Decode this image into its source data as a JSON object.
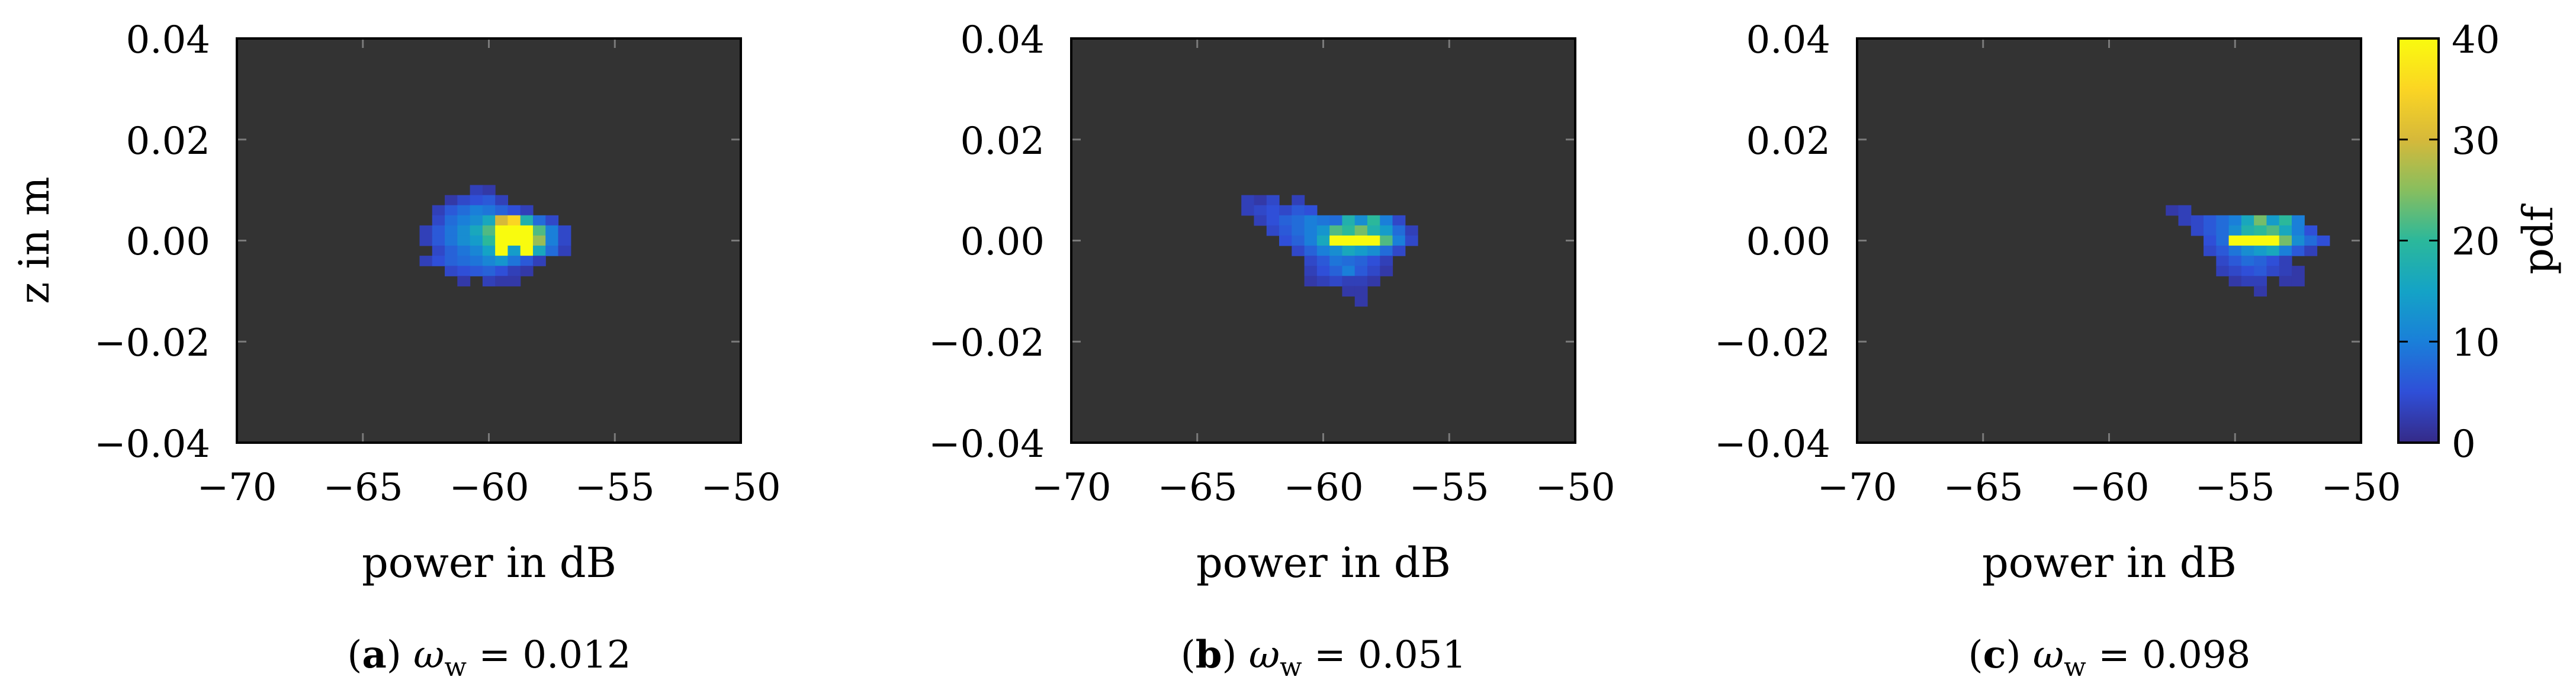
{
  "chart_data": [
    {
      "type": "heatmap",
      "caption_letter": "a",
      "caption_rest": "ω",
      "caption_sub": "w",
      "caption_value": " = 0.012",
      "xlabel": "power in dB",
      "ylabel": "z in m",
      "xlim": [
        -70,
        -50
      ],
      "ylim": [
        -0.04,
        0.04
      ],
      "xticks": [
        "−70",
        "−65",
        "−60",
        "−55",
        "−50"
      ],
      "yticks": [
        "−0.04",
        "−0.02",
        "0.00",
        "0.02",
        "0.04"
      ],
      "bin_width": 0.5,
      "bin_height": 0.002,
      "cells": [
        [
          -60.5,
          0.01,
          3
        ],
        [
          -60.0,
          0.01,
          2
        ],
        [
          -61.5,
          0.008,
          2
        ],
        [
          -61.0,
          0.008,
          4
        ],
        [
          -60.5,
          0.008,
          5
        ],
        [
          -60.0,
          0.008,
          6
        ],
        [
          -59.5,
          0.008,
          3
        ],
        [
          -62.0,
          0.006,
          3
        ],
        [
          -61.5,
          0.006,
          6
        ],
        [
          -61.0,
          0.006,
          8
        ],
        [
          -60.5,
          0.006,
          10
        ],
        [
          -60.0,
          0.006,
          9
        ],
        [
          -59.5,
          0.006,
          7
        ],
        [
          -59.0,
          0.006,
          5
        ],
        [
          -58.5,
          0.006,
          3
        ],
        [
          -62.0,
          0.004,
          4
        ],
        [
          -61.5,
          0.004,
          8
        ],
        [
          -61.0,
          0.004,
          10
        ],
        [
          -60.5,
          0.004,
          12
        ],
        [
          -60.0,
          0.004,
          16
        ],
        [
          -59.5,
          0.004,
          30
        ],
        [
          -59.0,
          0.004,
          35
        ],
        [
          -58.5,
          0.004,
          18
        ],
        [
          -58.0,
          0.004,
          8
        ],
        [
          -57.5,
          0.004,
          4
        ],
        [
          -62.5,
          0.002,
          3
        ],
        [
          -62.0,
          0.002,
          6
        ],
        [
          -61.5,
          0.002,
          9
        ],
        [
          -61.0,
          0.002,
          12
        ],
        [
          -60.5,
          0.002,
          16
        ],
        [
          -60.0,
          0.002,
          22
        ],
        [
          -59.5,
          0.002,
          40
        ],
        [
          -59.0,
          0.002,
          40
        ],
        [
          -58.5,
          0.002,
          40
        ],
        [
          -58.0,
          0.002,
          22
        ],
        [
          -57.5,
          0.002,
          10
        ],
        [
          -57.0,
          0.002,
          4
        ],
        [
          -62.5,
          0.0,
          3
        ],
        [
          -62.0,
          0.0,
          6
        ],
        [
          -61.5,
          0.0,
          9
        ],
        [
          -61.0,
          0.0,
          12
        ],
        [
          -60.5,
          0.0,
          14
        ],
        [
          -60.0,
          0.0,
          20
        ],
        [
          -59.5,
          0.0,
          40
        ],
        [
          -59.0,
          0.0,
          40
        ],
        [
          -58.5,
          0.0,
          40
        ],
        [
          -58.0,
          0.0,
          26
        ],
        [
          -57.5,
          0.0,
          10
        ],
        [
          -57.0,
          0.0,
          4
        ],
        [
          -62.0,
          -0.002,
          4
        ],
        [
          -61.5,
          -0.002,
          7
        ],
        [
          -61.0,
          -0.002,
          9
        ],
        [
          -60.5,
          -0.002,
          11
        ],
        [
          -60.0,
          -0.002,
          15
        ],
        [
          -59.5,
          -0.002,
          40
        ],
        [
          -59.0,
          -0.002,
          14
        ],
        [
          -58.5,
          -0.002,
          40
        ],
        [
          -58.0,
          -0.002,
          16
        ],
        [
          -57.5,
          -0.002,
          8
        ],
        [
          -57.0,
          -0.002,
          3
        ],
        [
          -62.5,
          -0.004,
          3
        ],
        [
          -62.0,
          -0.004,
          5
        ],
        [
          -61.5,
          -0.004,
          7
        ],
        [
          -61.0,
          -0.004,
          8
        ],
        [
          -60.5,
          -0.004,
          9
        ],
        [
          -60.0,
          -0.004,
          11
        ],
        [
          -59.5,
          -0.004,
          13
        ],
        [
          -59.0,
          -0.004,
          9
        ],
        [
          -58.5,
          -0.004,
          6
        ],
        [
          -58.0,
          -0.004,
          3
        ],
        [
          -61.5,
          -0.006,
          4
        ],
        [
          -61.0,
          -0.006,
          5
        ],
        [
          -60.5,
          -0.006,
          6
        ],
        [
          -60.0,
          -0.006,
          7
        ],
        [
          -59.5,
          -0.006,
          5
        ],
        [
          -59.0,
          -0.006,
          3
        ],
        [
          -58.5,
          -0.006,
          2
        ],
        [
          -61.0,
          -0.008,
          2
        ],
        [
          -60.0,
          -0.008,
          3
        ],
        [
          -59.5,
          -0.008,
          2
        ],
        [
          -59.0,
          -0.008,
          2
        ]
      ]
    },
    {
      "type": "heatmap",
      "caption_letter": "b",
      "caption_rest": "ω",
      "caption_sub": "w",
      "caption_value": " = 0.051",
      "xlabel": "power in dB",
      "ylabel": "",
      "xlim": [
        -70,
        -50
      ],
      "ylim": [
        -0.04,
        0.04
      ],
      "xticks": [
        "−70",
        "−65",
        "−60",
        "−55",
        "−50"
      ],
      "yticks": [
        "−0.04",
        "−0.02",
        "0.00",
        "0.02",
        "0.04"
      ],
      "bin_width": 0.5,
      "bin_height": 0.002,
      "cells": [
        [
          -63.0,
          0.008,
          3
        ],
        [
          -62.5,
          0.008,
          2
        ],
        [
          -62.0,
          0.008,
          4
        ],
        [
          -61.0,
          0.008,
          3
        ],
        [
          -63.0,
          0.006,
          3
        ],
        [
          -62.5,
          0.006,
          4
        ],
        [
          -62.0,
          0.006,
          5
        ],
        [
          -61.5,
          0.006,
          4
        ],
        [
          -61.0,
          0.006,
          6
        ],
        [
          -60.5,
          0.006,
          5
        ],
        [
          -62.5,
          0.004,
          3
        ],
        [
          -62.0,
          0.004,
          5
        ],
        [
          -61.5,
          0.004,
          7
        ],
        [
          -61.0,
          0.004,
          8
        ],
        [
          -60.5,
          0.004,
          10
        ],
        [
          -60.0,
          0.004,
          9
        ],
        [
          -59.5,
          0.004,
          8
        ],
        [
          -59.0,
          0.004,
          18
        ],
        [
          -58.5,
          0.004,
          12
        ],
        [
          -58.0,
          0.004,
          20
        ],
        [
          -57.5,
          0.004,
          10
        ],
        [
          -57.0,
          0.004,
          4
        ],
        [
          -62.0,
          0.002,
          4
        ],
        [
          -61.5,
          0.002,
          6
        ],
        [
          -61.0,
          0.002,
          8
        ],
        [
          -60.5,
          0.002,
          10
        ],
        [
          -60.0,
          0.002,
          13
        ],
        [
          -59.5,
          0.002,
          22
        ],
        [
          -59.0,
          0.002,
          20
        ],
        [
          -58.5,
          0.002,
          24
        ],
        [
          -58.0,
          0.002,
          18
        ],
        [
          -57.5,
          0.002,
          14
        ],
        [
          -57.0,
          0.002,
          8
        ],
        [
          -56.5,
          0.002,
          3
        ],
        [
          -61.5,
          0.0,
          5
        ],
        [
          -61.0,
          0.0,
          7
        ],
        [
          -60.5,
          0.0,
          10
        ],
        [
          -60.0,
          0.0,
          16
        ],
        [
          -59.5,
          0.0,
          40
        ],
        [
          -59.0,
          0.0,
          40
        ],
        [
          -58.5,
          0.0,
          40
        ],
        [
          -58.0,
          0.0,
          40
        ],
        [
          -57.5,
          0.0,
          22
        ],
        [
          -57.0,
          0.0,
          10
        ],
        [
          -56.5,
          0.0,
          4
        ],
        [
          -61.0,
          -0.002,
          4
        ],
        [
          -60.5,
          -0.002,
          7
        ],
        [
          -60.0,
          -0.002,
          10
        ],
        [
          -59.5,
          -0.002,
          12
        ],
        [
          -59.0,
          -0.002,
          16
        ],
        [
          -58.5,
          -0.002,
          14
        ],
        [
          -58.0,
          -0.002,
          12
        ],
        [
          -57.5,
          -0.002,
          8
        ],
        [
          -57.0,
          -0.002,
          4
        ],
        [
          -60.5,
          -0.004,
          4
        ],
        [
          -60.0,
          -0.004,
          6
        ],
        [
          -59.5,
          -0.004,
          9
        ],
        [
          -59.0,
          -0.004,
          8
        ],
        [
          -58.5,
          -0.004,
          7
        ],
        [
          -58.0,
          -0.004,
          5
        ],
        [
          -57.5,
          -0.004,
          3
        ],
        [
          -60.5,
          -0.006,
          3
        ],
        [
          -60.0,
          -0.006,
          5
        ],
        [
          -59.5,
          -0.006,
          7
        ],
        [
          -59.0,
          -0.006,
          10
        ],
        [
          -58.5,
          -0.006,
          6
        ],
        [
          -58.0,
          -0.006,
          4
        ],
        [
          -57.5,
          -0.006,
          2
        ],
        [
          -60.5,
          -0.008,
          2
        ],
        [
          -60.0,
          -0.008,
          3
        ],
        [
          -59.5,
          -0.008,
          4
        ],
        [
          -59.0,
          -0.008,
          3
        ],
        [
          -58.5,
          -0.008,
          3
        ],
        [
          -58.0,
          -0.008,
          2
        ],
        [
          -59.0,
          -0.01,
          2
        ],
        [
          -58.5,
          -0.01,
          2
        ],
        [
          -58.5,
          -0.012,
          2
        ]
      ]
    },
    {
      "type": "heatmap",
      "caption_letter": "c",
      "caption_rest": "ω",
      "caption_sub": "w",
      "caption_value": " = 0.098",
      "xlabel": "power in dB",
      "ylabel": "",
      "xlim": [
        -70,
        -50
      ],
      "ylim": [
        -0.04,
        0.04
      ],
      "xticks": [
        "−70",
        "−65",
        "−60",
        "−55",
        "−50"
      ],
      "yticks": [
        "−0.04",
        "−0.02",
        "0.00",
        "0.02",
        "0.04"
      ],
      "bin_width": 0.5,
      "bin_height": 0.002,
      "cells": [
        [
          -57.5,
          0.006,
          2
        ],
        [
          -57.0,
          0.006,
          3
        ],
        [
          -57.0,
          0.004,
          3
        ],
        [
          -56.5,
          0.004,
          4
        ],
        [
          -56.0,
          0.004,
          6
        ],
        [
          -55.5,
          0.004,
          8
        ],
        [
          -55.0,
          0.004,
          10
        ],
        [
          -54.5,
          0.004,
          16
        ],
        [
          -54.0,
          0.004,
          24
        ],
        [
          -53.5,
          0.004,
          14
        ],
        [
          -53.0,
          0.004,
          20
        ],
        [
          -52.5,
          0.004,
          10
        ],
        [
          -56.5,
          0.002,
          4
        ],
        [
          -56.0,
          0.002,
          6
        ],
        [
          -55.5,
          0.002,
          8
        ],
        [
          -55.0,
          0.002,
          12
        ],
        [
          -54.5,
          0.002,
          18
        ],
        [
          -54.0,
          0.002,
          20
        ],
        [
          -53.5,
          0.002,
          22
        ],
        [
          -53.0,
          0.002,
          16
        ],
        [
          -52.5,
          0.002,
          10
        ],
        [
          -52.0,
          0.002,
          5
        ],
        [
          -56.0,
          0.0,
          5
        ],
        [
          -55.5,
          0.0,
          8
        ],
        [
          -55.0,
          0.0,
          40
        ],
        [
          -54.5,
          0.0,
          40
        ],
        [
          -54.0,
          0.0,
          40
        ],
        [
          -53.5,
          0.0,
          40
        ],
        [
          -53.0,
          0.0,
          24
        ],
        [
          -52.5,
          0.0,
          12
        ],
        [
          -52.0,
          0.0,
          8
        ],
        [
          -51.5,
          0.0,
          5
        ],
        [
          -56.0,
          -0.002,
          4
        ],
        [
          -55.5,
          -0.002,
          6
        ],
        [
          -55.0,
          -0.002,
          9
        ],
        [
          -54.5,
          -0.002,
          12
        ],
        [
          -54.0,
          -0.002,
          14
        ],
        [
          -53.5,
          -0.002,
          16
        ],
        [
          -53.0,
          -0.002,
          10
        ],
        [
          -52.5,
          -0.002,
          6
        ],
        [
          -52.0,
          -0.002,
          3
        ],
        [
          -55.5,
          -0.004,
          4
        ],
        [
          -55.0,
          -0.004,
          6
        ],
        [
          -54.5,
          -0.004,
          8
        ],
        [
          -54.0,
          -0.004,
          7
        ],
        [
          -53.5,
          -0.004,
          5
        ],
        [
          -53.0,
          -0.004,
          3
        ],
        [
          -55.5,
          -0.006,
          3
        ],
        [
          -55.0,
          -0.006,
          4
        ],
        [
          -54.5,
          -0.006,
          5
        ],
        [
          -54.0,
          -0.006,
          6
        ],
        [
          -53.5,
          -0.006,
          4
        ],
        [
          -53.0,
          -0.006,
          3
        ],
        [
          -52.5,
          -0.006,
          2
        ],
        [
          -55.0,
          -0.008,
          2
        ],
        [
          -54.5,
          -0.008,
          3
        ],
        [
          -54.0,
          -0.008,
          3
        ],
        [
          -53.0,
          -0.008,
          2
        ],
        [
          -52.5,
          -0.008,
          2
        ],
        [
          -54.0,
          -0.01,
          2
        ]
      ]
    }
  ],
  "colorbar": {
    "label": "pdf",
    "range": [
      0,
      40
    ],
    "ticks": [
      "0",
      "10",
      "20",
      "30",
      "40"
    ],
    "colors": [
      "#352a87",
      "#2f4fd8",
      "#1a7fd9",
      "#14a3c6",
      "#2bb89b",
      "#88be5e",
      "#d6b93a",
      "#fbd523",
      "#f9fb0e"
    ]
  },
  "background_color": "#333333"
}
